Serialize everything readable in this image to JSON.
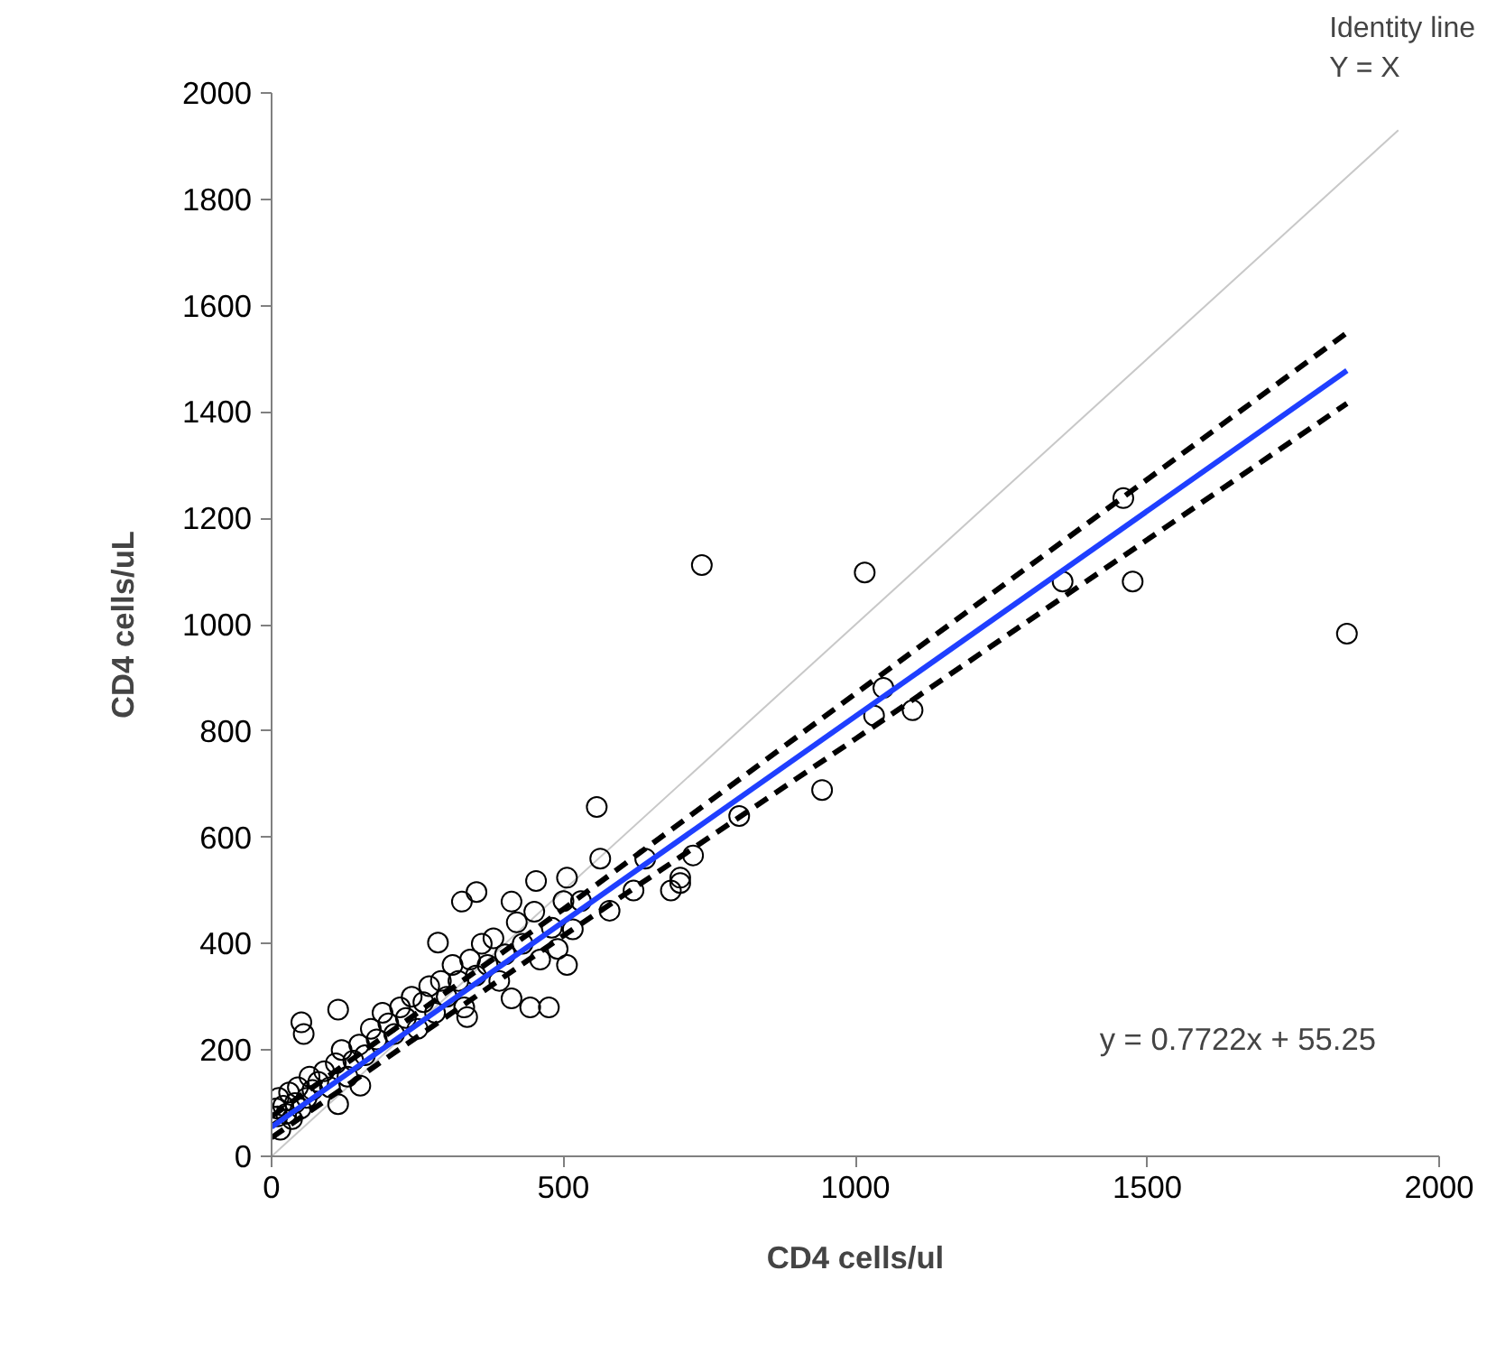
{
  "chart_data": {
    "type": "scatter",
    "xlabel": "CD4 cells/ul",
    "ylabel": "CD4 cells/uL",
    "xlim": [
      0,
      2000
    ],
    "ylim": [
      0,
      2000
    ],
    "xticks": [
      0,
      500,
      1000,
      1500,
      2000
    ],
    "yticks": [
      0,
      200,
      400,
      600,
      800,
      1000,
      1200,
      1400,
      1600,
      1800,
      2000
    ],
    "grid": false,
    "series": [
      {
        "type": "line",
        "color": "#c8c8c8",
        "line_style": "solid",
        "x": [
          0,
          1930
        ],
        "values": [
          0,
          1930
        ]
      },
      {
        "color": "#000000",
        "marker": "circle",
        "x": [
          8,
          10,
          12,
          15,
          20,
          25,
          30,
          35,
          40,
          45,
          50,
          55,
          60,
          65,
          70,
          80,
          90,
          100,
          110,
          114,
          120,
          130,
          140,
          150,
          152,
          160,
          170,
          180,
          190,
          200,
          210,
          220,
          230,
          240,
          250,
          260,
          270,
          280,
          285,
          290,
          300,
          310,
          320,
          326,
          330,
          335,
          340,
          350,
          351,
          360,
          370,
          380,
          390,
          400,
          411,
          411,
          420,
          430,
          443,
          450,
          453,
          460,
          475,
          480,
          490,
          500,
          506,
          506,
          516,
          530,
          557,
          563,
          579,
          620,
          640,
          684,
          700,
          700,
          722,
          737,
          801,
          943,
          1016,
          1032,
          1048,
          1098,
          1355,
          1459,
          1475,
          1842,
          51,
          114
        ],
        "values": [
          90,
          75,
          110,
          50,
          95,
          80,
          120,
          70,
          100,
          130,
          90,
          230,
          110,
          150,
          125,
          140,
          160,
          130,
          175,
          98,
          200,
          150,
          180,
          210,
          133,
          190,
          240,
          220,
          270,
          250,
          230,
          280,
          260,
          300,
          240,
          290,
          320,
          270,
          402,
          330,
          300,
          360,
          330,
          479,
          280,
          262,
          370,
          340,
          497,
          400,
          360,
          410,
          330,
          380,
          297,
          479,
          440,
          400,
          280,
          460,
          518,
          370,
          280,
          430,
          390,
          480,
          524,
          360,
          427,
          480,
          657,
          560,
          462,
          500,
          560,
          500,
          524,
          514,
          566,
          1112,
          640,
          689,
          1098,
          829,
          881,
          839,
          1081,
          1238,
          1081,
          983,
          252,
          276
        ]
      },
      {
        "type": "line",
        "color": "#000000",
        "line_style": "dashed",
        "x": [
          0,
          500,
          1000,
          1842
        ],
        "values": [
          75,
          465,
          870,
          1549
        ]
      },
      {
        "type": "line",
        "color": "#000000",
        "line_style": "dashed",
        "x": [
          0,
          500,
          1000,
          1842
        ],
        "values": [
          35,
          415,
          785,
          1416
        ]
      },
      {
        "type": "line",
        "color": "#1f3fff",
        "line_style": "solid",
        "x": [
          0,
          1842
        ],
        "values": [
          55,
          1478
        ]
      }
    ],
    "annotations": [
      "Identity line\nY = X",
      "y = 0.7722x + 55.25"
    ]
  }
}
